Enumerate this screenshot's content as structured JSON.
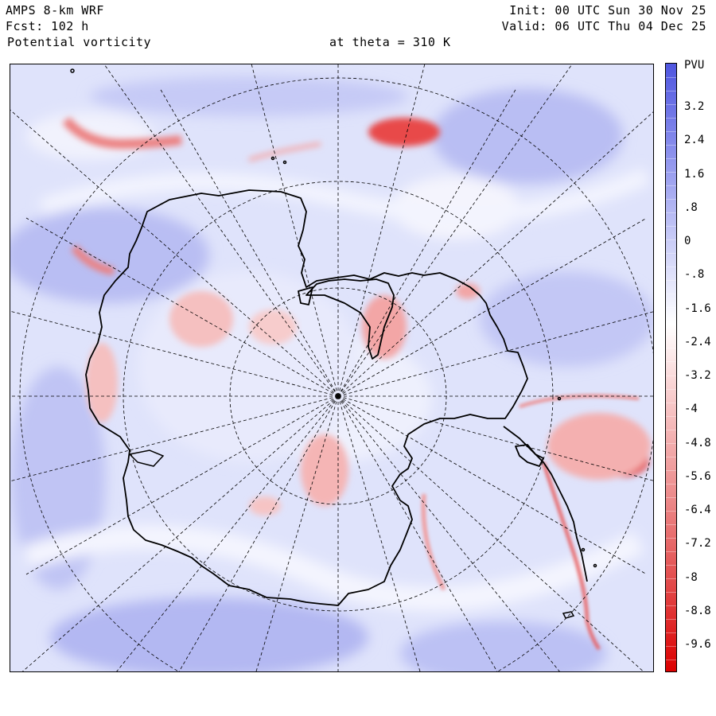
{
  "header": {
    "model": "AMPS 8-km WRF",
    "forecast": "Fcst:  102 h",
    "field": "Potential vorticity",
    "level": "at theta = 310 K",
    "init": "Init: 00 UTC Sun 30 Nov 25",
    "valid": "Valid: 06 UTC Thu 04 Dec 25"
  },
  "colorbar": {
    "units": "PVU",
    "labels": [
      "3.2",
      "2.4",
      "1.6",
      ".8",
      "0",
      "-.8",
      "-1.6",
      "-2.4",
      "-3.2",
      "-4",
      "-4.8",
      "-5.6",
      "-6.4",
      "-7.2",
      "-8",
      "-8.8",
      "-9.6"
    ],
    "colors_top_to_bottom": [
      "#4f56e0",
      "#8a8fec",
      "#c7caf6",
      "#ffffff",
      "#f6c2c2",
      "#ec8a8a",
      "#e24a4a",
      "#dc0000"
    ]
  },
  "map": {
    "projection": "polar-stereographic",
    "land_outline": "Antarctica",
    "background_color": "#dfe3fb",
    "pv_features": [
      {
        "name": "cyclone-east-of-peninsula",
        "color": "#e03838"
      },
      {
        "name": "anomaly-north-ross",
        "color": "#e03838"
      },
      {
        "name": "streamer-west",
        "color": "#ec7a7a"
      }
    ]
  }
}
